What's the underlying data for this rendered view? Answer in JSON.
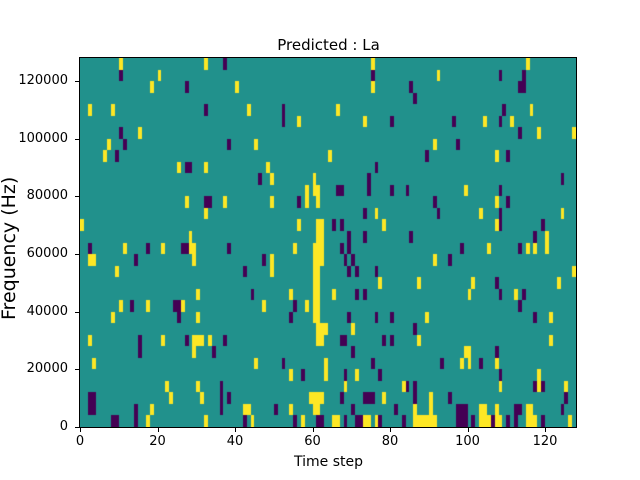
{
  "figure": {
    "title": "Predicted : La",
    "xlabel": "Time step",
    "ylabel": "Frequency (Hz)"
  },
  "chart_data": {
    "type": "heatmap",
    "title": "Predicted : La",
    "xlabel": "Time step",
    "ylabel": "Frequency (Hz)",
    "grid_cols": 128,
    "grid_rows": 32,
    "xlim": [
      0,
      128
    ],
    "ylim": [
      0,
      128000
    ],
    "x_ticks": [
      0,
      20,
      40,
      60,
      80,
      100,
      120
    ],
    "y_ticks": [
      0,
      20000,
      40000,
      60000,
      80000,
      100000,
      120000
    ],
    "grid": false,
    "legend": "none",
    "colors": {
      "background_mid": "#21918c",
      "high": "#fde725",
      "low": "#440154",
      "figure_background": "#ffffff",
      "spine": "#000000",
      "text": "#000000"
    },
    "cells_high": [
      [
        10,
        31
      ],
      [
        32,
        31
      ],
      [
        75,
        31
      ],
      [
        115,
        31
      ],
      [
        20,
        30
      ],
      [
        92,
        30
      ],
      [
        18,
        29
      ],
      [
        40,
        29
      ],
      [
        75,
        29
      ],
      [
        2,
        27
      ],
      [
        8,
        27
      ],
      [
        43,
        27
      ],
      [
        66,
        27
      ],
      [
        116,
        27
      ],
      [
        56,
        26
      ],
      [
        73,
        26
      ],
      [
        104,
        26
      ],
      [
        111,
        26
      ],
      [
        15,
        25
      ],
      [
        118,
        25
      ],
      [
        127,
        25
      ],
      [
        7,
        24
      ],
      [
        45,
        24
      ],
      [
        91,
        24
      ],
      [
        6,
        23
      ],
      [
        64,
        23
      ],
      [
        107,
        23
      ],
      [
        25,
        22
      ],
      [
        32,
        22
      ],
      [
        48,
        22
      ],
      [
        49,
        21
      ],
      [
        60,
        21
      ],
      [
        58,
        20
      ],
      [
        60,
        20
      ],
      [
        61,
        20
      ],
      [
        99,
        20
      ],
      [
        27,
        19
      ],
      [
        37,
        19
      ],
      [
        49,
        19
      ],
      [
        58,
        19
      ],
      [
        61,
        19
      ],
      [
        107,
        19
      ],
      [
        32,
        18
      ],
      [
        76,
        18
      ],
      [
        103,
        18
      ],
      [
        124,
        18
      ],
      [
        0,
        17
      ],
      [
        56,
        17
      ],
      [
        61,
        17
      ],
      [
        62,
        17
      ],
      [
        78,
        17
      ],
      [
        107,
        17
      ],
      [
        28,
        16
      ],
      [
        61,
        16
      ],
      [
        62,
        16
      ],
      [
        120,
        16
      ],
      [
        11,
        15
      ],
      [
        21,
        15
      ],
      [
        28,
        15
      ],
      [
        29,
        15
      ],
      [
        55,
        15
      ],
      [
        60,
        15
      ],
      [
        61,
        15
      ],
      [
        62,
        15
      ],
      [
        105,
        15
      ],
      [
        115,
        15
      ],
      [
        117,
        15
      ],
      [
        120,
        15
      ],
      [
        2,
        14
      ],
      [
        3,
        14
      ],
      [
        29,
        14
      ],
      [
        49,
        14
      ],
      [
        60,
        14
      ],
      [
        61,
        14
      ],
      [
        62,
        14
      ],
      [
        91,
        14
      ],
      [
        9,
        13
      ],
      [
        49,
        13
      ],
      [
        60,
        13
      ],
      [
        61,
        13
      ],
      [
        127,
        13
      ],
      [
        60,
        12
      ],
      [
        61,
        12
      ],
      [
        77,
        12
      ],
      [
        87,
        12
      ],
      [
        101,
        12
      ],
      [
        123,
        12
      ],
      [
        30,
        11
      ],
      [
        54,
        11
      ],
      [
        60,
        11
      ],
      [
        61,
        11
      ],
      [
        65,
        11
      ],
      [
        100,
        11
      ],
      [
        112,
        11
      ],
      [
        10,
        10
      ],
      [
        17,
        10
      ],
      [
        26,
        10
      ],
      [
        47,
        10
      ],
      [
        58,
        10
      ],
      [
        60,
        10
      ],
      [
        61,
        10
      ],
      [
        8,
        9
      ],
      [
        30,
        9
      ],
      [
        60,
        9
      ],
      [
        61,
        9
      ],
      [
        89,
        9
      ],
      [
        121,
        9
      ],
      [
        61,
        8
      ],
      [
        62,
        8
      ],
      [
        63,
        8
      ],
      [
        70,
        8
      ],
      [
        2,
        7
      ],
      [
        21,
        7
      ],
      [
        29,
        7
      ],
      [
        30,
        7
      ],
      [
        31,
        7
      ],
      [
        33,
        7
      ],
      [
        61,
        7
      ],
      [
        62,
        7
      ],
      [
        87,
        7
      ],
      [
        121,
        7
      ],
      [
        29,
        6
      ],
      [
        99,
        6
      ],
      [
        100,
        6
      ],
      [
        3,
        5
      ],
      [
        45,
        5
      ],
      [
        63,
        5
      ],
      [
        98,
        5
      ],
      [
        100,
        5
      ],
      [
        107,
        5
      ],
      [
        54,
        4
      ],
      [
        63,
        4
      ],
      [
        71,
        4
      ],
      [
        118,
        4
      ],
      [
        22,
        3
      ],
      [
        30,
        3
      ],
      [
        68,
        3
      ],
      [
        83,
        3
      ],
      [
        108,
        3
      ],
      [
        118,
        3
      ],
      [
        125,
        3
      ],
      [
        23,
        2
      ],
      [
        31,
        2
      ],
      [
        59,
        2
      ],
      [
        60,
        2
      ],
      [
        61,
        2
      ],
      [
        62,
        2
      ],
      [
        78,
        2
      ],
      [
        90,
        2
      ],
      [
        18,
        1
      ],
      [
        42,
        1
      ],
      [
        43,
        1
      ],
      [
        54,
        1
      ],
      [
        60,
        1
      ],
      [
        61,
        1
      ],
      [
        86,
        1
      ],
      [
        90,
        1
      ],
      [
        103,
        1
      ],
      [
        104,
        1
      ],
      [
        107,
        1
      ],
      [
        115,
        1
      ],
      [
        116,
        1
      ],
      [
        17,
        0
      ],
      [
        32,
        0
      ],
      [
        44,
        0
      ],
      [
        57,
        0
      ],
      [
        65,
        0
      ],
      [
        66,
        0
      ],
      [
        73,
        0
      ],
      [
        74,
        0
      ],
      [
        76,
        0
      ],
      [
        86,
        0
      ],
      [
        87,
        0
      ],
      [
        88,
        0
      ],
      [
        89,
        0
      ],
      [
        90,
        0
      ],
      [
        91,
        0
      ],
      [
        103,
        0
      ],
      [
        104,
        0
      ],
      [
        105,
        0
      ],
      [
        107,
        0
      ],
      [
        108,
        0
      ],
      [
        115,
        0
      ],
      [
        116,
        0
      ],
      [
        117,
        0
      ],
      [
        126,
        0
      ]
    ],
    "cells_low": [
      [
        37,
        31
      ],
      [
        10,
        30
      ],
      [
        75,
        30
      ],
      [
        108,
        30
      ],
      [
        114,
        30
      ],
      [
        27,
        29
      ],
      [
        85,
        29
      ],
      [
        113,
        29
      ],
      [
        114,
        29
      ],
      [
        86,
        28
      ],
      [
        32,
        27
      ],
      [
        52,
        27
      ],
      [
        109,
        27
      ],
      [
        52,
        26
      ],
      [
        80,
        26
      ],
      [
        96,
        26
      ],
      [
        108,
        26
      ],
      [
        10,
        25
      ],
      [
        113,
        25
      ],
      [
        11,
        24
      ],
      [
        38,
        24
      ],
      [
        97,
        24
      ],
      [
        9,
        23
      ],
      [
        89,
        23
      ],
      [
        110,
        23
      ],
      [
        27,
        22
      ],
      [
        28,
        22
      ],
      [
        76,
        22
      ],
      [
        46,
        21
      ],
      [
        74,
        21
      ],
      [
        124,
        21
      ],
      [
        66,
        20
      ],
      [
        67,
        20
      ],
      [
        74,
        20
      ],
      [
        80,
        20
      ],
      [
        84,
        20
      ],
      [
        108,
        20
      ],
      [
        32,
        19
      ],
      [
        33,
        19
      ],
      [
        56,
        19
      ],
      [
        91,
        19
      ],
      [
        110,
        19
      ],
      [
        73,
        18
      ],
      [
        92,
        18
      ],
      [
        108,
        18
      ],
      [
        65,
        17
      ],
      [
        67,
        17
      ],
      [
        108,
        17
      ],
      [
        119,
        17
      ],
      [
        69,
        16
      ],
      [
        73,
        16
      ],
      [
        85,
        16
      ],
      [
        117,
        16
      ],
      [
        2,
        15
      ],
      [
        17,
        15
      ],
      [
        26,
        15
      ],
      [
        27,
        15
      ],
      [
        38,
        15
      ],
      [
        67,
        15
      ],
      [
        69,
        15
      ],
      [
        98,
        15
      ],
      [
        113,
        15
      ],
      [
        14,
        14
      ],
      [
        47,
        14
      ],
      [
        68,
        14
      ],
      [
        70,
        14
      ],
      [
        95,
        14
      ],
      [
        42,
        13
      ],
      [
        69,
        13
      ],
      [
        71,
        13
      ],
      [
        76,
        13
      ],
      [
        107,
        12
      ],
      [
        44,
        11
      ],
      [
        71,
        11
      ],
      [
        73,
        11
      ],
      [
        108,
        11
      ],
      [
        114,
        11
      ],
      [
        13,
        10
      ],
      [
        24,
        10
      ],
      [
        25,
        10
      ],
      [
        55,
        10
      ],
      [
        113,
        10
      ],
      [
        25,
        9
      ],
      [
        54,
        9
      ],
      [
        69,
        9
      ],
      [
        76,
        9
      ],
      [
        80,
        9
      ],
      [
        117,
        9
      ],
      [
        86,
        8
      ],
      [
        15,
        7
      ],
      [
        27,
        7
      ],
      [
        37,
        7
      ],
      [
        67,
        7
      ],
      [
        68,
        7
      ],
      [
        78,
        7
      ],
      [
        80,
        7
      ],
      [
        15,
        6
      ],
      [
        34,
        6
      ],
      [
        70,
        6
      ],
      [
        107,
        6
      ],
      [
        52,
        5
      ],
      [
        75,
        5
      ],
      [
        93,
        5
      ],
      [
        103,
        5
      ],
      [
        57,
        4
      ],
      [
        68,
        4
      ],
      [
        77,
        4
      ],
      [
        108,
        4
      ],
      [
        36,
        3
      ],
      [
        84,
        3
      ],
      [
        86,
        3
      ],
      [
        117,
        3
      ],
      [
        119,
        3
      ],
      [
        2,
        2
      ],
      [
        3,
        2
      ],
      [
        36,
        2
      ],
      [
        38,
        2
      ],
      [
        67,
        2
      ],
      [
        73,
        2
      ],
      [
        74,
        2
      ],
      [
        75,
        2
      ],
      [
        86,
        2
      ],
      [
        95,
        2
      ],
      [
        125,
        2
      ],
      [
        2,
        1
      ],
      [
        3,
        1
      ],
      [
        14,
        1
      ],
      [
        36,
        1
      ],
      [
        50,
        1
      ],
      [
        70,
        1
      ],
      [
        81,
        1
      ],
      [
        97,
        1
      ],
      [
        98,
        1
      ],
      [
        99,
        1
      ],
      [
        112,
        1
      ],
      [
        113,
        1
      ],
      [
        124,
        1
      ],
      [
        8,
        0
      ],
      [
        9,
        0
      ],
      [
        14,
        0
      ],
      [
        42,
        0
      ],
      [
        55,
        0
      ],
      [
        61,
        0
      ],
      [
        62,
        0
      ],
      [
        68,
        0
      ],
      [
        71,
        0
      ],
      [
        72,
        0
      ],
      [
        77,
        0
      ],
      [
        83,
        0
      ],
      [
        97,
        0
      ],
      [
        98,
        0
      ],
      [
        99,
        0
      ],
      [
        101,
        0
      ],
      [
        106,
        0
      ],
      [
        110,
        0
      ],
      [
        112,
        0
      ],
      [
        119,
        0
      ]
    ]
  }
}
